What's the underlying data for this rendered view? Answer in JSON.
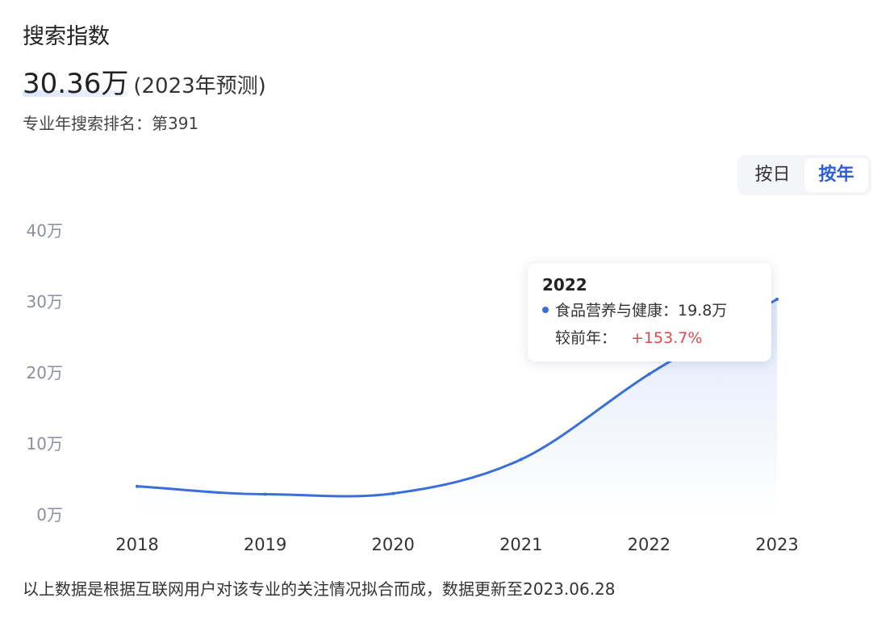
{
  "header": {
    "title": "搜索指数",
    "value": "30.36万",
    "value_note": "(2023年预测)",
    "rank": "专业年搜索排名：第391"
  },
  "toggle": {
    "options": [
      "按日",
      "按年"
    ],
    "active_index": 1
  },
  "tooltip": {
    "year": "2022",
    "series_label": "食品营养与健康：19.8万",
    "change_label": "较前年：",
    "change_value": "+153.7%"
  },
  "footnote": "以上数据是根据互联网用户对该专业的关注情况拟合而成，数据更新至2023.06.28",
  "colors": {
    "line": "#3a6ed8",
    "accent": "#2f5fd0",
    "increase": "#e04a4a",
    "axis_text": "#8a8f9c"
  },
  "chart_data": {
    "type": "area",
    "categories": [
      "2018",
      "2019",
      "2020",
      "2021",
      "2022",
      "2023"
    ],
    "y_ticks": [
      "0万",
      "10万",
      "20万",
      "30万",
      "40万"
    ],
    "ylim": [
      0,
      40
    ],
    "y_unit": "万",
    "series": [
      {
        "name": "食品营养与健康",
        "values": [
          4.0,
          2.9,
          3.0,
          7.8,
          19.8,
          30.36
        ]
      }
    ],
    "grid": false,
    "legend": "none"
  }
}
